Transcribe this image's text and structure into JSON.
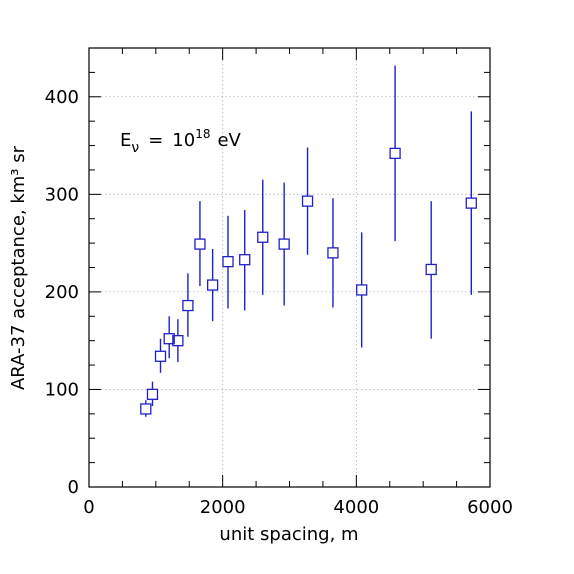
{
  "chart_data": {
    "type": "scatter",
    "xlabel": "unit spacing, m",
    "ylabel": "ARA-37 acceptance, km³ sr",
    "annotation": {
      "symbol": "E",
      "subscript": "ν",
      "equals": "=",
      "base": "10",
      "exponent": "18",
      "unit": "eV"
    },
    "xlim": [
      0,
      6000
    ],
    "ylim": [
      0,
      450
    ],
    "x_ticks": [
      0,
      2000,
      4000,
      6000
    ],
    "x_tick_labels": [
      "0",
      "2000",
      "4000",
      "6000"
    ],
    "y_ticks": [
      0,
      100,
      200,
      300,
      400
    ],
    "y_tick_labels": [
      "0",
      "100",
      "200",
      "300",
      "400"
    ],
    "grid": true,
    "marker_color": "#2020c8",
    "series": [
      {
        "points": [
          {
            "x": 850,
            "y": 80,
            "lo": 72,
            "hi": 89
          },
          {
            "x": 950,
            "y": 95,
            "lo": 83,
            "hi": 108
          },
          {
            "x": 1070,
            "y": 134,
            "lo": 117,
            "hi": 152
          },
          {
            "x": 1200,
            "y": 152,
            "lo": 132,
            "hi": 175
          },
          {
            "x": 1330,
            "y": 150,
            "lo": 128,
            "hi": 172
          },
          {
            "x": 1480,
            "y": 186,
            "lo": 154,
            "hi": 219
          },
          {
            "x": 1660,
            "y": 249,
            "lo": 206,
            "hi": 293
          },
          {
            "x": 1850,
            "y": 207,
            "lo": 170,
            "hi": 244
          },
          {
            "x": 2080,
            "y": 231,
            "lo": 183,
            "hi": 278
          },
          {
            "x": 2330,
            "y": 233,
            "lo": 181,
            "hi": 284
          },
          {
            "x": 2600,
            "y": 256,
            "lo": 197,
            "hi": 315
          },
          {
            "x": 2920,
            "y": 249,
            "lo": 186,
            "hi": 312
          },
          {
            "x": 3270,
            "y": 293,
            "lo": 238,
            "hi": 348
          },
          {
            "x": 3650,
            "y": 240,
            "lo": 184,
            "hi": 296
          },
          {
            "x": 4080,
            "y": 202,
            "lo": 143,
            "hi": 261
          },
          {
            "x": 4580,
            "y": 342,
            "lo": 252,
            "hi": 432
          },
          {
            "x": 5120,
            "y": 223,
            "lo": 152,
            "hi": 293
          },
          {
            "x": 5720,
            "y": 291,
            "lo": 197,
            "hi": 385
          }
        ]
      }
    ]
  }
}
